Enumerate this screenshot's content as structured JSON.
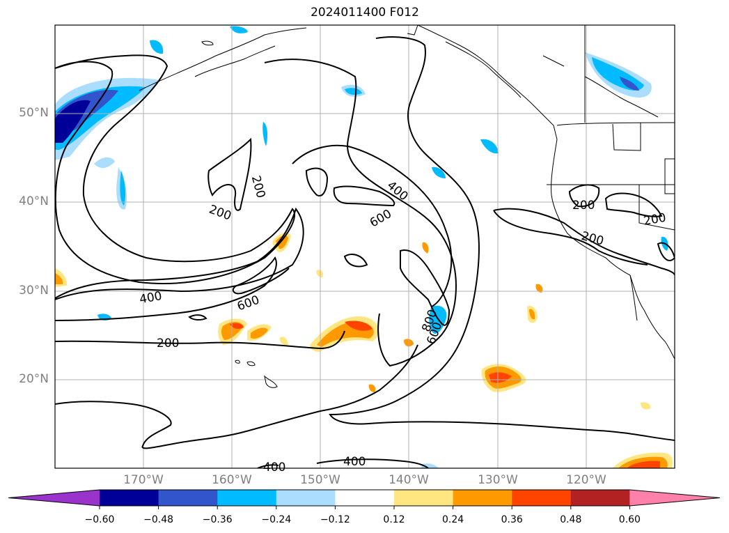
{
  "title": "2024011400 F012",
  "lat_labels": [
    "50°N",
    "40°N",
    "30°N",
    "20°N"
  ],
  "lon_labels": [
    "170°W",
    "160°W",
    "150°W",
    "140°W",
    "130°W",
    "120°W"
  ],
  "contour_labels": [
    "200",
    "200",
    "400",
    "600",
    "400",
    "600",
    "200",
    "800",
    "600",
    "200",
    "200",
    "200",
    "400",
    "400"
  ],
  "colorbar": {
    "ticks": [
      "−0.60",
      "−0.48",
      "−0.36",
      "−0.24",
      "−0.12",
      "0.12",
      "0.24",
      "0.36",
      "0.48",
      "0.60"
    ],
    "colors": [
      "#9933cc",
      "#000099",
      "#3355cc",
      "#00bbff",
      "#aaddff",
      "#ffffff",
      "#ffe680",
      "#ff9900",
      "#ff4400",
      "#b22222",
      "#ff80aa"
    ]
  }
}
